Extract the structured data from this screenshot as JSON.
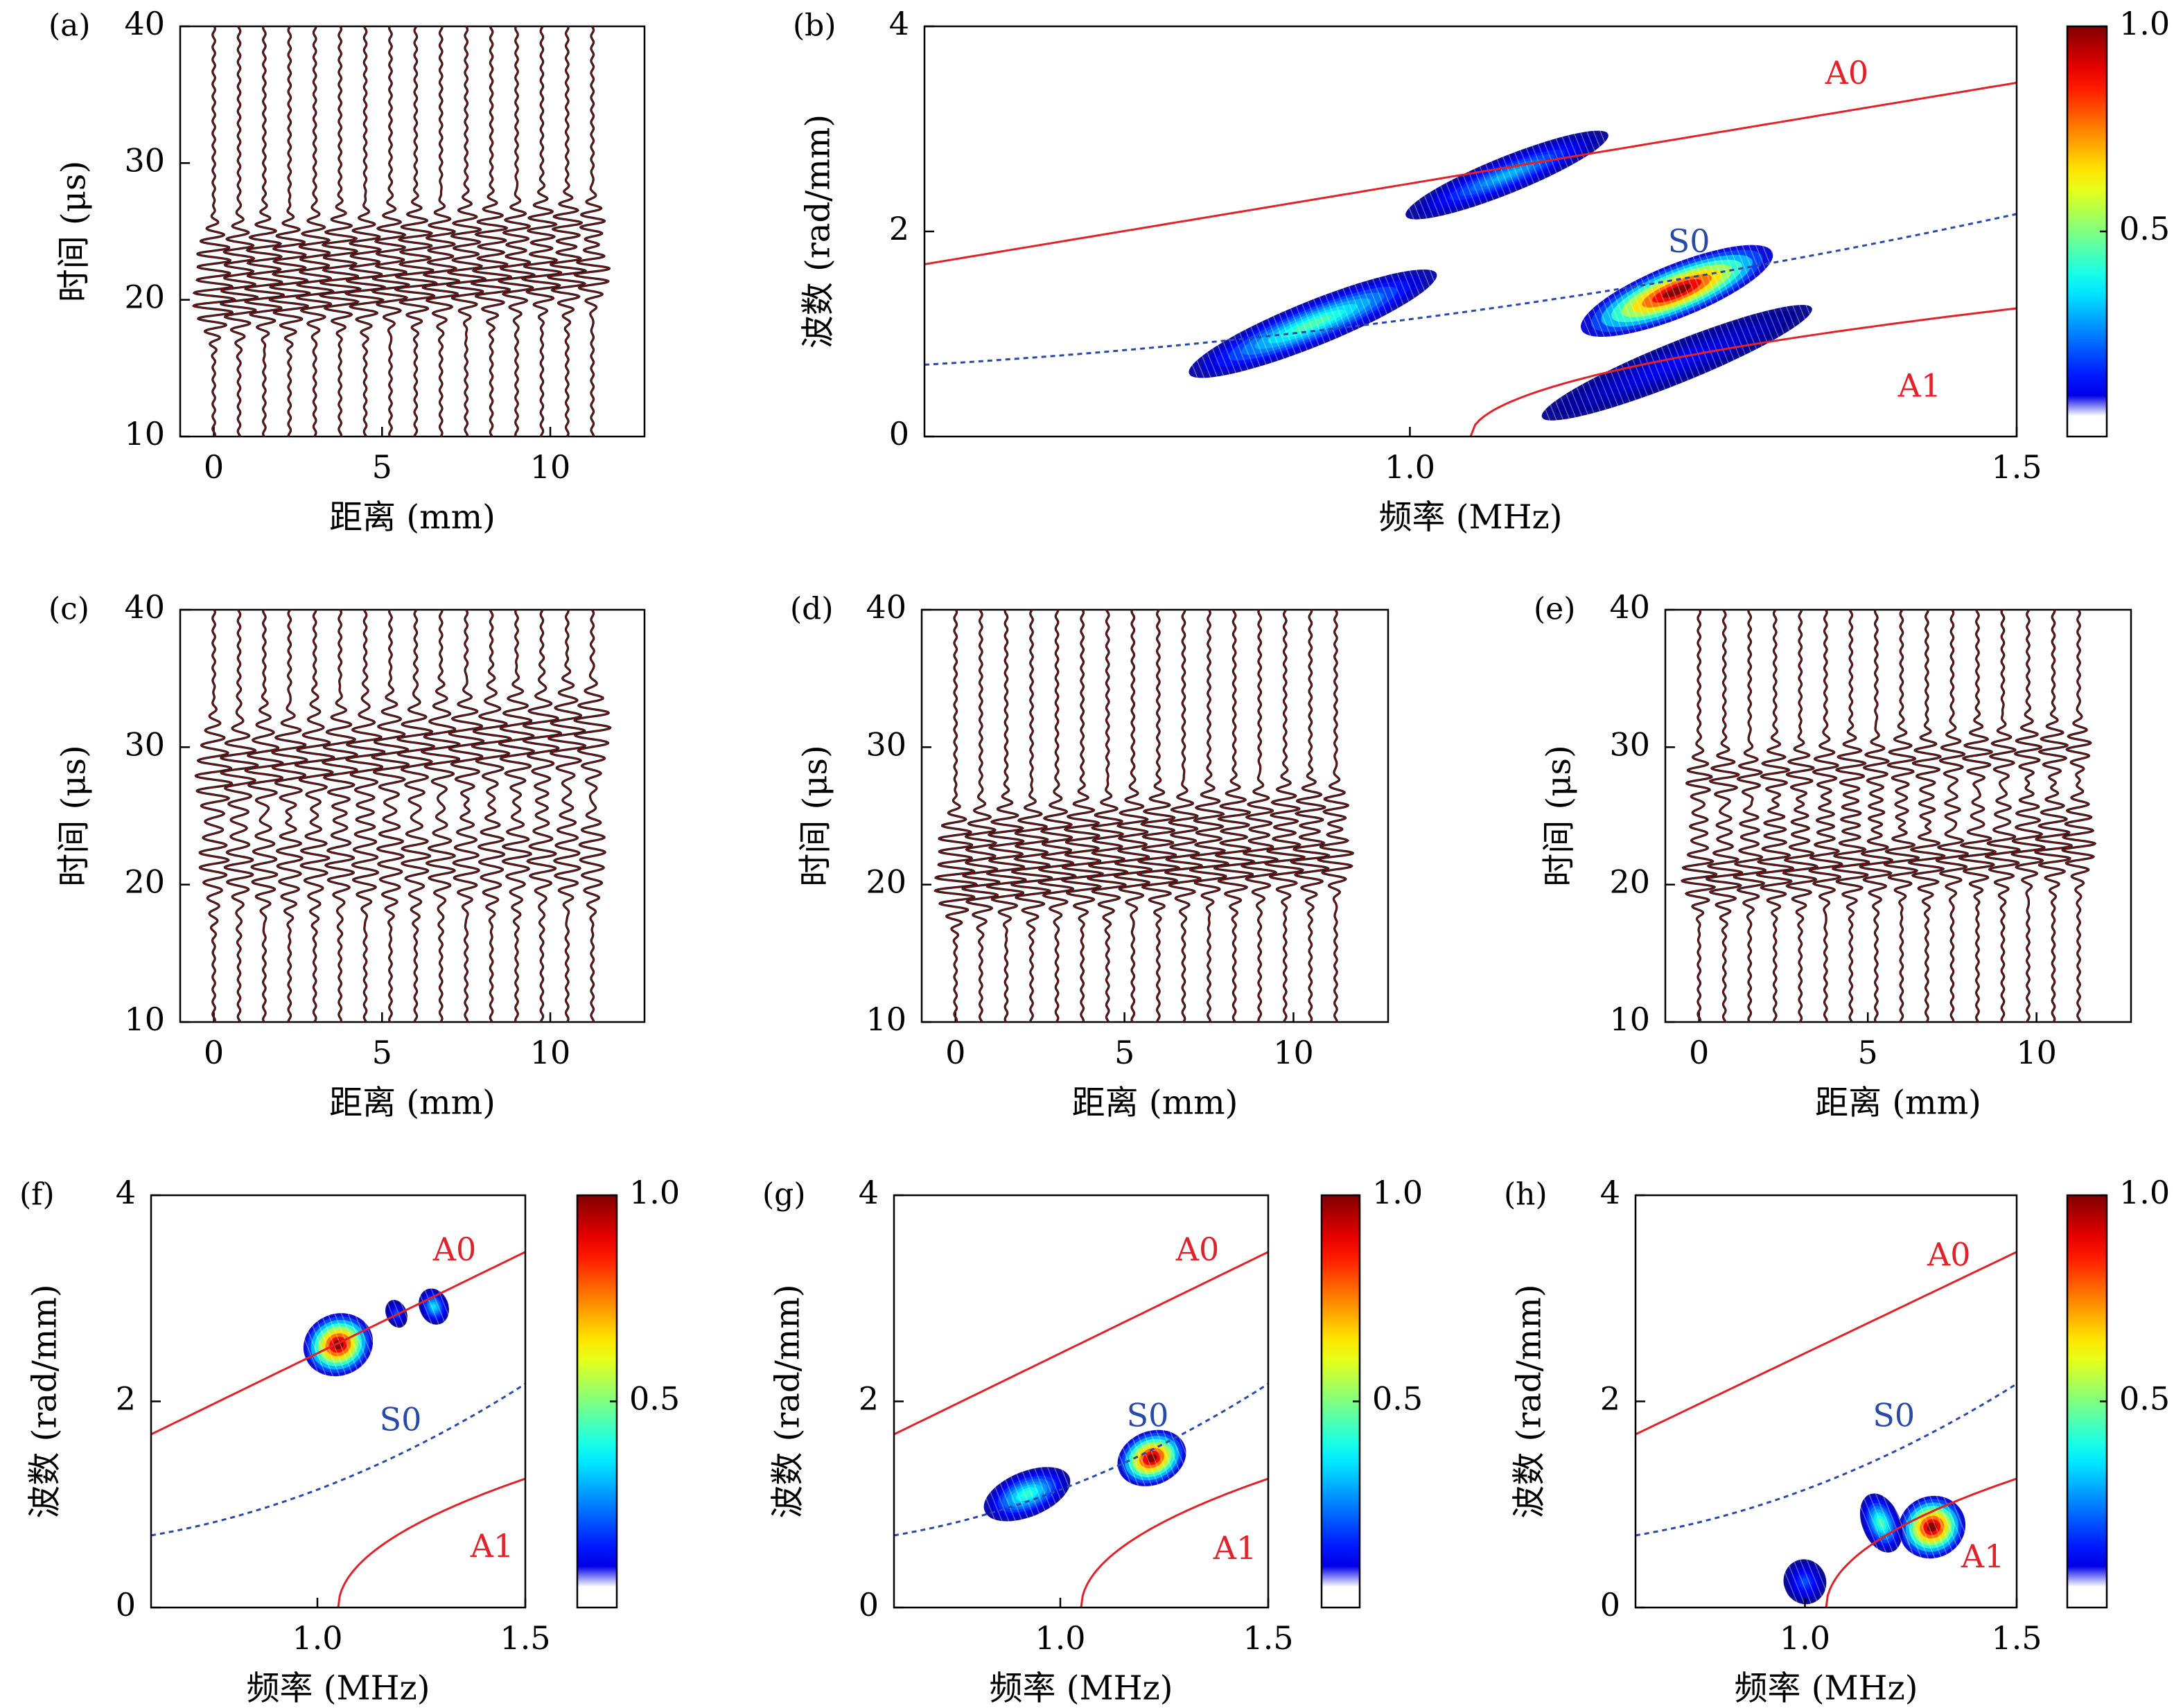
{
  "colors": {
    "trace": "#111111",
    "trace_core": "#c0141c",
    "mode_A": "#e0222a",
    "mode_S0": "#2a4aa8"
  },
  "colormap": "jet",
  "chart_data": [
    {
      "id": "a",
      "panel_label": "(a)",
      "type": "line",
      "subtype": "wiggle",
      "xlabel": "距离 (mm)",
      "ylabel": "时间 (μs)",
      "xlim": [
        -1,
        12.8
      ],
      "ylim": [
        10,
        40
      ],
      "xticks": [
        0,
        5,
        10
      ],
      "yticks": [
        10,
        20,
        30,
        40
      ],
      "trace_positions_mm": [
        0,
        0.75,
        1.5,
        2.25,
        3,
        3.75,
        4.5,
        5.25,
        6,
        6.75,
        7.5,
        8.25,
        9,
        9.75,
        10.5,
        11.25
      ],
      "packets": [
        {
          "t0": 19.8,
          "slope": 0.2,
          "amp": 0.78,
          "width": 2.3,
          "period": 0.95
        },
        {
          "t0": 23.6,
          "slope": 0.17,
          "amp": 0.6,
          "width": 2.0,
          "period": 0.95
        }
      ]
    },
    {
      "id": "b",
      "panel_label": "(b)",
      "type": "heatmap",
      "xlabel": "频率 (MHz)",
      "ylabel": "波数 (rad/mm)",
      "xlim": [
        0.6,
        1.5
      ],
      "ylim": [
        0,
        4
      ],
      "xticks": [
        1.0,
        1.5
      ],
      "yticks": [
        0,
        2,
        4
      ],
      "colorbar": {
        "ticks": [
          0.5,
          1.0
        ],
        "range": [
          0,
          1
        ]
      },
      "annotations": [
        "A0",
        "S0",
        "A1"
      ],
      "blobs": [
        {
          "f": 1.22,
          "k": 1.42,
          "rf": 0.085,
          "rk": 0.26,
          "peak": 1.0
        },
        {
          "f": 0.92,
          "k": 1.1,
          "rf": 0.11,
          "rk": 0.22,
          "peak": 0.45
        },
        {
          "f": 1.08,
          "k": 2.55,
          "rf": 0.09,
          "rk": 0.18,
          "peak": 0.3
        },
        {
          "f": 1.22,
          "k": 0.72,
          "rf": 0.12,
          "rk": 0.2,
          "peak": 0.12
        }
      ]
    },
    {
      "id": "c",
      "panel_label": "(c)",
      "type": "line",
      "subtype": "wiggle",
      "xlabel": "距离 (mm)",
      "ylabel": "时间 (μs)",
      "xlim": [
        -1,
        12.8
      ],
      "ylim": [
        10,
        40
      ],
      "xticks": [
        0,
        5,
        10
      ],
      "yticks": [
        10,
        20,
        30,
        40
      ],
      "trace_positions_mm": [
        0,
        0.75,
        1.5,
        2.25,
        3,
        3.75,
        4.5,
        5.25,
        6,
        6.75,
        7.5,
        8.25,
        9,
        9.75,
        10.5,
        11.25
      ],
      "packets": [
        {
          "t0": 21.5,
          "slope": 0.05,
          "amp": 0.55,
          "width": 3.2,
          "period": 1.1
        },
        {
          "t0": 28.2,
          "slope": 0.26,
          "amp": 0.75,
          "width": 3.2,
          "period": 1.1
        }
      ]
    },
    {
      "id": "d",
      "panel_label": "(d)",
      "type": "line",
      "subtype": "wiggle",
      "xlabel": "距离 (mm)",
      "ylabel": "时间 (μs)",
      "xlim": [
        -1,
        12.8
      ],
      "ylim": [
        10,
        40
      ],
      "xticks": [
        0,
        5,
        10
      ],
      "yticks": [
        10,
        20,
        30,
        40
      ],
      "trace_positions_mm": [
        0,
        0.75,
        1.5,
        2.25,
        3,
        3.75,
        4.5,
        5.25,
        6,
        6.75,
        7.5,
        8.25,
        9,
        9.75,
        10.5,
        11.25
      ],
      "packets": [
        {
          "t0": 19.8,
          "slope": 0.2,
          "amp": 0.78,
          "width": 2.3,
          "period": 0.95
        },
        {
          "t0": 23.6,
          "slope": 0.17,
          "amp": 0.6,
          "width": 2.0,
          "period": 0.95
        }
      ]
    },
    {
      "id": "e",
      "panel_label": "(e)",
      "type": "line",
      "subtype": "wiggle",
      "xlabel": "距离 (mm)",
      "ylabel": "时间 (μs)",
      "xlim": [
        -1,
        12.8
      ],
      "ylim": [
        10,
        40
      ],
      "xticks": [
        0,
        5,
        10
      ],
      "yticks": [
        10,
        20,
        30,
        40
      ],
      "trace_positions_mm": [
        0,
        0.75,
        1.5,
        2.25,
        3,
        3.75,
        4.5,
        5.25,
        6,
        6.75,
        7.5,
        8.25,
        9,
        9.75,
        10.5,
        11.25
      ],
      "packets": [
        {
          "t0": 20.5,
          "slope": 0.2,
          "amp": 0.7,
          "width": 2.3,
          "period": 0.95
        },
        {
          "t0": 27.6,
          "slope": 0.22,
          "amp": 0.55,
          "width": 1.9,
          "period": 0.95
        },
        {
          "t0": 24.5,
          "slope": 0.1,
          "amp": 0.35,
          "width": 1.5,
          "period": 0.95
        }
      ]
    },
    {
      "id": "f",
      "panel_label": "(f)",
      "type": "heatmap",
      "xlabel": "频率 (MHz)",
      "ylabel": "波数 (rad/mm)",
      "xlim": [
        0.6,
        1.5
      ],
      "ylim": [
        0,
        4
      ],
      "xticks": [
        1.0,
        1.5
      ],
      "yticks": [
        0,
        2,
        4
      ],
      "colorbar": {
        "ticks": [
          0.5,
          1.0
        ],
        "range": [
          0,
          1
        ]
      },
      "annotations": [
        "A0",
        "S0",
        "A1"
      ],
      "blobs": [
        {
          "f": 1.05,
          "k": 2.55,
          "rf": 0.085,
          "rk": 0.3,
          "peak": 1.0
        },
        {
          "f": 1.28,
          "k": 2.92,
          "rf": 0.035,
          "rk": 0.18,
          "peak": 0.35
        },
        {
          "f": 1.19,
          "k": 2.85,
          "rf": 0.025,
          "rk": 0.14,
          "peak": 0.2
        }
      ]
    },
    {
      "id": "g",
      "panel_label": "(g)",
      "type": "heatmap",
      "xlabel": "频率 (MHz)",
      "ylabel": "波数 (rad/mm)",
      "xlim": [
        0.6,
        1.5
      ],
      "ylim": [
        0,
        4
      ],
      "xticks": [
        1.0,
        1.5
      ],
      "yticks": [
        0,
        2,
        4
      ],
      "colorbar": {
        "ticks": [
          0.5,
          1.0
        ],
        "range": [
          0,
          1
        ]
      },
      "annotations": [
        "A0",
        "S0",
        "A1"
      ],
      "blobs": [
        {
          "f": 1.22,
          "k": 1.45,
          "rf": 0.085,
          "rk": 0.26,
          "peak": 1.0
        },
        {
          "f": 0.92,
          "k": 1.1,
          "rf": 0.11,
          "rk": 0.22,
          "peak": 0.42
        }
      ]
    },
    {
      "id": "h",
      "panel_label": "(h)",
      "type": "heatmap",
      "xlabel": "频率 (MHz)",
      "ylabel": "波数 (rad/mm)",
      "xlim": [
        0.6,
        1.5
      ],
      "ylim": [
        0,
        4
      ],
      "xticks": [
        1.0,
        1.5
      ],
      "yticks": [
        0,
        2,
        4
      ],
      "colorbar": {
        "ticks": [
          0.5,
          1.0
        ],
        "range": [
          0,
          1
        ]
      },
      "annotations": [
        "A0",
        "S0",
        "A1"
      ],
      "blobs": [
        {
          "f": 1.3,
          "k": 0.78,
          "rf": 0.08,
          "rk": 0.3,
          "peak": 1.0
        },
        {
          "f": 1.18,
          "k": 0.82,
          "rf": 0.045,
          "rk": 0.3,
          "peak": 0.45
        },
        {
          "f": 1.0,
          "k": 0.25,
          "rf": 0.05,
          "rk": 0.22,
          "peak": 0.2
        }
      ]
    }
  ]
}
